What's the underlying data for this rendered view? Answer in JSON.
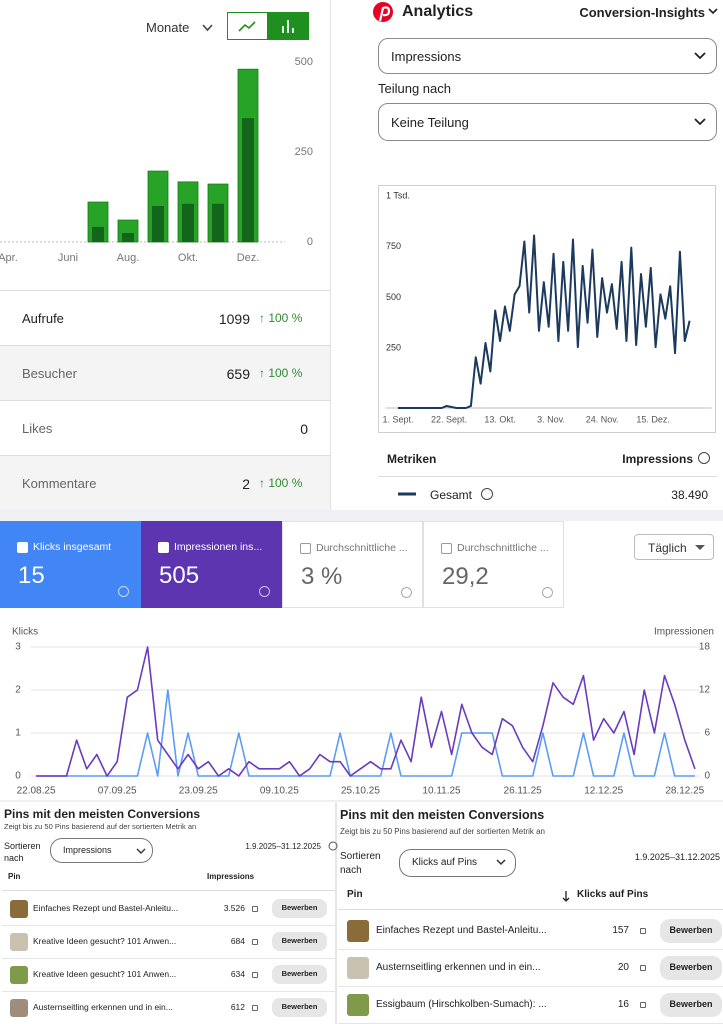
{
  "chart_data": [
    {
      "type": "bar",
      "categories": [
        "Apr.",
        null,
        "Juni",
        null,
        "Aug.",
        null,
        "Okt.",
        null,
        "Dez."
      ],
      "series": [
        {
          "color": "#27a327",
          "values": [
            0,
            0,
            0,
            111,
            61,
            197,
            167,
            161,
            480
          ]
        },
        {
          "color": "#12651a",
          "values": [
            0,
            0,
            0,
            42,
            25,
            100,
            106,
            106,
            344
          ]
        }
      ],
      "ylim": [
        0,
        500
      ],
      "yticks": [
        0,
        250,
        500
      ],
      "grid": false
    },
    {
      "type": "line",
      "x": [
        0,
        2,
        4,
        6,
        8,
        10,
        12,
        14,
        16,
        18,
        20,
        22,
        24,
        26,
        28,
        30,
        32,
        34,
        36,
        38,
        40,
        42,
        44,
        46,
        48,
        50,
        52,
        54,
        56,
        58,
        60,
        62,
        64,
        66,
        68,
        70,
        72,
        74,
        76,
        78,
        80,
        82,
        84,
        86,
        88,
        90,
        92,
        94,
        96,
        98,
        100,
        102,
        104,
        106,
        108,
        110,
        112,
        114,
        116,
        118,
        120
      ],
      "series": [
        {
          "name": "Gesamt",
          "color": "#1b3a5e",
          "values": [
            0,
            0,
            0,
            0,
            0,
            0,
            0,
            0,
            0,
            0,
            10,
            5,
            0,
            0,
            0,
            10,
            250,
            120,
            320,
            180,
            480,
            330,
            500,
            380,
            560,
            600,
            820,
            470,
            850,
            380,
            620,
            400,
            760,
            330,
            720,
            380,
            830,
            300,
            700,
            420,
            780,
            350,
            640,
            470,
            610,
            390,
            720,
            330,
            790,
            310,
            660,
            400,
            690,
            300,
            560,
            440,
            600,
            270,
            770,
            330,
            430
          ]
        }
      ],
      "xlim": [
        -5,
        129
      ],
      "xticks": [
        {
          "value": 0,
          "label": "1. Sept."
        },
        {
          "value": 21,
          "label": "22. Sept."
        },
        {
          "value": 42,
          "label": "13. Okt."
        },
        {
          "value": 63,
          "label": "3. Nov."
        },
        {
          "value": 84,
          "label": "24. Nov."
        },
        {
          "value": 105,
          "label": "15. Dez."
        }
      ],
      "ylim": [
        0,
        1000
      ],
      "yticks": [
        250,
        500,
        750,
        {
          "value": 1000,
          "label": "1 Tsd."
        }
      ],
      "grid": false
    },
    {
      "type": "line",
      "ylabel": "Klicks",
      "y2label": "Impressionen",
      "x": [
        0,
        2,
        4,
        6,
        8,
        10,
        12,
        14,
        16,
        18,
        20,
        22,
        24,
        26,
        28,
        30,
        32,
        34,
        36,
        38,
        40,
        42,
        44,
        46,
        48,
        50,
        52,
        54,
        56,
        58,
        60,
        62,
        64,
        66,
        68,
        70,
        72,
        74,
        76,
        78,
        80,
        82,
        84,
        86,
        88,
        90,
        92,
        94,
        96,
        98,
        100,
        102,
        104,
        106,
        108,
        110,
        112,
        114,
        116,
        118,
        120,
        122,
        124,
        126,
        128,
        130
      ],
      "series": [
        {
          "color": "#5b9cf6",
          "values": [
            0,
            0,
            0,
            0,
            0,
            0,
            0,
            0,
            0,
            0,
            0,
            1,
            0,
            2,
            0,
            1,
            0,
            0,
            0,
            0,
            1,
            0,
            0,
            0,
            0,
            0,
            0,
            0,
            0,
            0,
            1,
            0,
            0,
            0,
            0,
            1,
            0,
            0,
            0,
            0,
            0,
            0,
            1,
            1,
            1,
            1,
            0,
            0,
            0,
            0,
            1,
            0,
            0,
            0,
            1,
            0,
            0,
            0,
            1,
            0,
            0,
            0,
            1,
            0,
            0,
            0
          ]
        },
        {
          "color": "#6a3bbf",
          "axis": "y2",
          "values": [
            0,
            0,
            0,
            0,
            5,
            1,
            3,
            0,
            2,
            11,
            12,
            18,
            5,
            3,
            1,
            3,
            1,
            2,
            0,
            1,
            0,
            2,
            1,
            1,
            1,
            2,
            0,
            1,
            3,
            2,
            2,
            0,
            1,
            2,
            1,
            1,
            5,
            2,
            11,
            4,
            9,
            3,
            10,
            6,
            4,
            3,
            8,
            7,
            4,
            2,
            7,
            13,
            11,
            10,
            14,
            5,
            8,
            6,
            9,
            3,
            12,
            6,
            14,
            10,
            5,
            1
          ]
        }
      ],
      "xlim": [
        -1,
        131
      ],
      "xticks": [
        {
          "value": 0,
          "label": "22.08.25"
        },
        {
          "value": 16,
          "label": "07.09.25"
        },
        {
          "value": 32,
          "label": "23.09.25"
        },
        {
          "value": 48,
          "label": "09.10.25"
        },
        {
          "value": 64,
          "label": "25.10.25"
        },
        {
          "value": 80,
          "label": "10.11.25"
        },
        {
          "value": 96,
          "label": "26.11.25"
        },
        {
          "value": 112,
          "label": "12.12.25"
        },
        {
          "value": 128,
          "label": "28.12.25"
        }
      ],
      "ylim": [
        0,
        3
      ],
      "yticks": [
        0,
        1,
        2,
        3
      ],
      "y2lim": [
        0,
        18
      ],
      "y2ticks": [
        0,
        6,
        12,
        18
      ],
      "grid": true
    }
  ],
  "views_header": {
    "period": "Monate"
  },
  "stats": [
    {
      "label": "Aufrufe",
      "value": "1099",
      "change": "↑ 100 %"
    },
    {
      "label": "Besucher",
      "value": "659",
      "change": "↑ 100 %"
    },
    {
      "label": "Likes",
      "value": "0"
    },
    {
      "label": "Kommentare",
      "value": "2",
      "change": "↑ 100 %"
    }
  ],
  "pinterest": {
    "title": "Analytics",
    "menu": "Conversion-Insights",
    "metric": "Impressions",
    "split_label": "Teilung nach",
    "split": "Keine Teilung",
    "table_header": [
      "Metriken",
      "Impressions"
    ],
    "total": "38.490"
  },
  "gsc": {
    "cards": [
      {
        "label": "Klicks insgesamt",
        "value": "15"
      },
      {
        "label": "Impressionen ins...",
        "value": "505"
      },
      {
        "label": "Durchschnittliche ...",
        "value": "3 %"
      },
      {
        "label": "Durchschnittliche ...",
        "value": "29,2"
      }
    ],
    "range": "Täglich"
  },
  "pins_left": {
    "title": "Pins mit den meisten Conversions",
    "subtitle": "Zeigt bis zu 50 Pins basierend auf der sortierten Metrik an",
    "sort_label": "Sortieren nach",
    "sort": "Impressions",
    "date": "1.9.2025–31.12.2025",
    "columns": [
      "Pin",
      "Impressions"
    ],
    "action": "Bewerben",
    "rows": [
      {
        "title": "Einfaches Rezept und Bastel-Anleitu...",
        "value": "3.526"
      },
      {
        "title": "Kreative Ideen gesucht? 101 Anwen...",
        "value": "684"
      },
      {
        "title": "Kreative Ideen gesucht? 101 Anwen...",
        "value": "634"
      },
      {
        "title": "Austernseitling erkennen und in ein...",
        "value": "612"
      }
    ]
  },
  "pins_right": {
    "title": "Pins mit den meisten Conversions",
    "subtitle": "Zeigt bis zu 50 Pins basierend auf der sortierten Metrik an",
    "sort_label": "Sortieren nach",
    "sort": "Klicks auf Pins",
    "date": "1.9.2025–31.12.2025",
    "columns": [
      "Pin",
      "Klicks auf Pins"
    ],
    "action": "Bewerben",
    "rows": [
      {
        "title": "Einfaches Rezept und Bastel-Anleitu...",
        "value": "157"
      },
      {
        "title": "Austernseitling erkennen und in ein...",
        "value": "20"
      },
      {
        "title": "Essigbaum (Hirschkolben-Sumach): ...",
        "value": "16"
      }
    ]
  }
}
